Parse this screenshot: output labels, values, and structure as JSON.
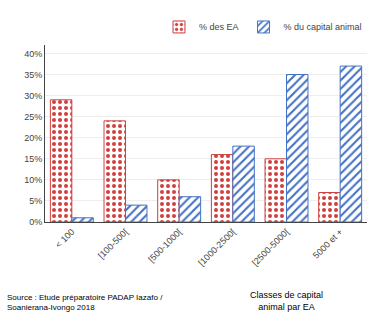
{
  "chart_data": {
    "type": "bar",
    "categories": [
      "< 100",
      "[100-500[",
      "[500-1000[",
      "[1000-2500[",
      "[2500-5000[",
      "5000 et +"
    ],
    "series": [
      {
        "name": "% des EA",
        "color": "#d04040",
        "values": [
          29,
          24,
          10,
          16,
          15,
          7
        ]
      },
      {
        "name": "% du capital animal",
        "color": "#4472c4",
        "values": [
          1,
          4,
          6,
          18,
          35,
          37
        ]
      }
    ],
    "xlabel": "Classes de capital\nanimal par EA",
    "annotations": [
      {
        "text": "Source : Etude préparatoire PADAP Iazafo /\nSoanierana-Ivongo 2018"
      }
    ],
    "ylim": [
      0,
      42
    ],
    "yticks": [
      {
        "value": 0,
        "label": "0%"
      },
      {
        "value": 5,
        "label": "5%"
      },
      {
        "value": 10,
        "label": "10%"
      },
      {
        "value": 15,
        "label": "15%"
      },
      {
        "value": 20,
        "label": "20%"
      },
      {
        "value": 25,
        "label": "25%"
      },
      {
        "value": 30,
        "label": "30%"
      },
      {
        "value": 35,
        "label": "35%"
      },
      {
        "value": 40,
        "label": "40%"
      }
    ],
    "grid": true,
    "legend": "upper right"
  }
}
